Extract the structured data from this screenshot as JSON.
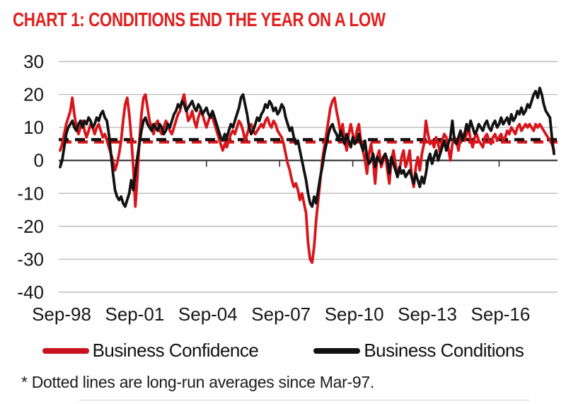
{
  "title": {
    "text": "CHART 1: CONDITIONS END THE YEAR ON A LOW",
    "color": "#e0201f"
  },
  "legend": {
    "items": [
      {
        "label": "Business Confidence",
        "color": "#c9141e"
      },
      {
        "label": "Business Conditions",
        "color": "#121212"
      }
    ]
  },
  "footnote": "* Dotted lines are long-run  averages since Mar-97.",
  "colors": {
    "grid": "#b5b5b5",
    "zero_axis": "#3f3f3f",
    "axis_text": "#161616",
    "confidence_red": "#d8151a",
    "conditions_black": "#121212"
  },
  "chart_data": {
    "type": "line",
    "title": "CHART 1: CONDITIONS END THE YEAR ON A LOW",
    "frequency": "monthly",
    "x_range": [
      "Sep-1998",
      "Dec-2018"
    ],
    "x_tick_labels": [
      "Sep-98",
      "Sep-01",
      "Sep-04",
      "Sep-07",
      "Sep-10",
      "Sep-13",
      "Sep-16"
    ],
    "x_tick_indices": [
      0,
      36,
      72,
      108,
      144,
      180,
      216
    ],
    "y_ticks": [
      30,
      20,
      10,
      0,
      -10,
      -20,
      -30,
      -40
    ],
    "ylim": [
      -40,
      30
    ],
    "xlabel": "",
    "ylabel": "",
    "grid": "horizontal-only",
    "legend_position": "bottom",
    "annotation": "* Dotted lines are long-run averages since Mar-97.",
    "average_lines": [
      {
        "series": "Business Confidence",
        "value": 5.6,
        "style": "dashed",
        "color": "#d8151a"
      },
      {
        "series": "Business Conditions",
        "value": 6.3,
        "style": "dashed",
        "color": "#111111"
      }
    ],
    "series": [
      {
        "name": "Business Confidence",
        "color": "#d8151a",
        "values": [
          3,
          5,
          8,
          11,
          13,
          15,
          19,
          14,
          10,
          8,
          10,
          12,
          9,
          7,
          9,
          11,
          10,
          8,
          10,
          11,
          9,
          7,
          8,
          6,
          4,
          2,
          0,
          -3,
          -1,
          2,
          6,
          12,
          17,
          19,
          14,
          7,
          -2,
          -14,
          -5,
          6,
          14,
          19,
          20,
          16,
          12,
          10,
          8,
          11,
          12,
          9,
          8,
          10,
          12,
          11,
          9,
          8,
          10,
          12,
          14,
          15,
          18,
          20,
          16,
          12,
          13,
          15,
          12,
          10,
          13,
          15,
          14,
          12,
          10,
          12,
          14,
          13,
          11,
          9,
          7,
          5,
          3,
          5,
          4,
          6,
          8,
          9,
          8,
          10,
          12,
          11,
          9,
          6,
          8,
          10,
          11,
          9,
          8,
          9,
          10,
          11,
          10,
          12,
          13,
          11,
          10,
          12,
          11,
          9,
          8,
          7,
          5,
          2,
          -1,
          -3,
          -6,
          -8,
          -7,
          -9,
          -12,
          -10,
          -13,
          -16,
          -25,
          -30,
          -31,
          -26,
          -18,
          -12,
          -6,
          0,
          4,
          8,
          12,
          16,
          18,
          19,
          15,
          12,
          8,
          11,
          6,
          3,
          8,
          11,
          8,
          5,
          9,
          11,
          6,
          3,
          0,
          -4,
          2,
          5,
          0,
          -7,
          1,
          3,
          -2,
          0,
          2,
          -3,
          -7,
          0,
          3,
          -1,
          -5,
          -3,
          1,
          3,
          -2,
          0,
          3,
          -5,
          -8,
          -2,
          1,
          -3,
          2,
          5,
          12,
          8,
          5,
          6,
          4,
          7,
          5,
          2,
          6,
          8,
          7,
          4,
          0,
          5,
          7,
          6,
          3,
          7,
          8,
          6,
          8,
          10,
          6,
          4,
          7,
          8,
          6,
          5,
          4,
          7,
          8,
          6,
          5,
          7,
          8,
          6,
          7,
          8,
          6,
          7,
          9,
          8,
          10,
          9,
          8,
          10,
          11,
          9,
          10,
          11,
          10,
          11,
          10,
          9,
          11,
          10,
          11,
          10,
          9,
          8,
          7,
          6,
          5,
          3
        ]
      },
      {
        "name": "Business Conditions",
        "color": "#121212",
        "values": [
          -2,
          0,
          4,
          8,
          10,
          11,
          12,
          10,
          9,
          11,
          12,
          10,
          12,
          11,
          13,
          12,
          10,
          11,
          13,
          12,
          14,
          15,
          13,
          12,
          8,
          2,
          -4,
          -9,
          -11,
          -12,
          -11,
          -13,
          -14,
          -12,
          -10,
          -6,
          -9,
          -4,
          1,
          5,
          9,
          12,
          13,
          11,
          10,
          9,
          11,
          10,
          9,
          11,
          10,
          8,
          9,
          11,
          10,
          12,
          14,
          15,
          17,
          16,
          18,
          17,
          15,
          16,
          17,
          18,
          16,
          15,
          17,
          16,
          14,
          15,
          16,
          14,
          13,
          15,
          13,
          11,
          9,
          7,
          6,
          8,
          7,
          9,
          11,
          10,
          12,
          14,
          16,
          19,
          20,
          17,
          14,
          10,
          8,
          9,
          11,
          13,
          12,
          14,
          15,
          17,
          16,
          18,
          17,
          15,
          16,
          14,
          15,
          17,
          16,
          13,
          11,
          9,
          10,
          7,
          5,
          6,
          3,
          0,
          -3,
          -6,
          -10,
          -13,
          -14,
          -11,
          -13,
          -9,
          -5,
          -2,
          2,
          5,
          8,
          10,
          11,
          9,
          8,
          6,
          9,
          7,
          5,
          8,
          6,
          4,
          7,
          5,
          6,
          8,
          5,
          3,
          6,
          1,
          -1,
          0,
          2,
          -2,
          1,
          0,
          -1,
          1,
          2,
          0,
          -4,
          1,
          -1,
          -3,
          -5,
          -2,
          -4,
          -3,
          -5,
          -4,
          -3,
          -5,
          -7,
          -4,
          -6,
          -8,
          -5,
          -7,
          -4,
          0,
          2,
          -1,
          1,
          3,
          0,
          2,
          4,
          6,
          3,
          5,
          7,
          12,
          6,
          5,
          7,
          9,
          6,
          8,
          11,
          9,
          12,
          10,
          8,
          9,
          11,
          10,
          9,
          11,
          12,
          10,
          9,
          11,
          12,
          10,
          11,
          13,
          11,
          12,
          13,
          11,
          14,
          12,
          13,
          15,
          14,
          16,
          14,
          15,
          17,
          16,
          18,
          20,
          21,
          19,
          22,
          20,
          17,
          15,
          14,
          13,
          7,
          2
        ]
      }
    ]
  }
}
